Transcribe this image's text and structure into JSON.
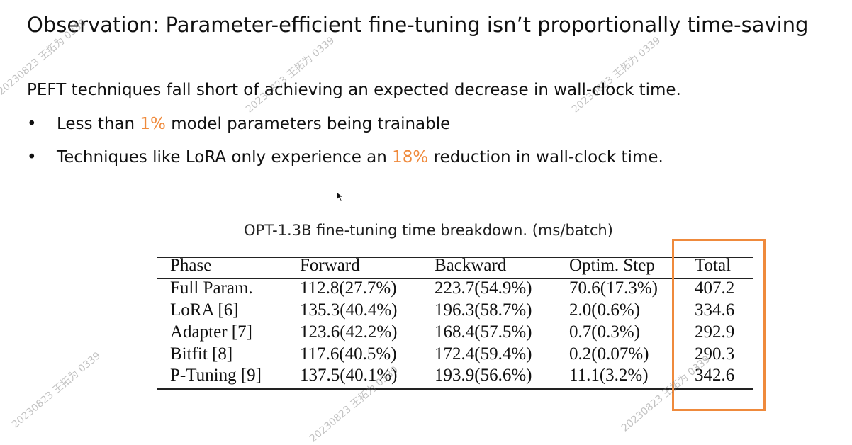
{
  "title": "Observation: Parameter-efficient fine-tuning isn’t proportionally time-saving",
  "intro": "PEFT techniques fall short of achieving an expected decrease in wall-clock time.",
  "bullets": [
    {
      "parts": [
        "Less than ",
        "1%",
        " model parameters being trainable"
      ]
    },
    {
      "parts": [
        "Techniques like LoRA only experience an ",
        "18%",
        " reduction in wall-clock time."
      ]
    }
  ],
  "table": {
    "caption": "OPT-1.3B fine-tuning time breakdown. (ms/batch)",
    "header": [
      "Phase",
      "Forward",
      "Backward",
      "Optim. Step",
      "Total"
    ],
    "rows": [
      [
        "Full Param.",
        "112.8(27.7%)",
        "223.7(54.9%)",
        "70.6(17.3%)",
        "407.2"
      ],
      [
        "LoRA [6]",
        "135.3(40.4%)",
        "196.3(58.7%)",
        "2.0(0.6%)",
        "334.6"
      ],
      [
        "Adapter [7]",
        "123.6(42.2%)",
        "168.4(57.5%)",
        "0.7(0.3%)",
        "292.9"
      ],
      [
        "Bitfit [8]",
        "117.6(40.5%)",
        "172.4(59.4%)",
        "0.2(0.07%)",
        "290.3"
      ],
      [
        "P-Tuning [9]",
        "137.5(40.1%)",
        "193.9(56.6%)",
        "11.1(3.2%)",
        "342.6"
      ]
    ]
  },
  "watermark": "20230823 王拓为 0339"
}
